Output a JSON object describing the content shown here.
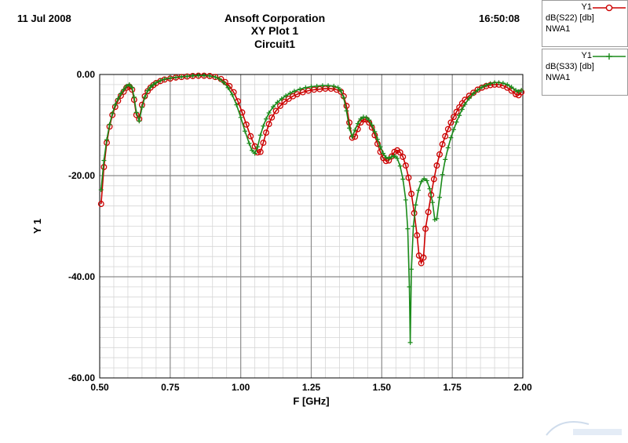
{
  "header": {
    "date": "11 Jul 2008",
    "time": "16:50:08",
    "company": "Ansoft Corporation",
    "plot_title": "XY Plot 1",
    "subtitle": "Circuit1"
  },
  "legend": [
    {
      "name": "Y1",
      "expression": "dB(S22) [db]",
      "solution": "NWA1",
      "color": "#cc0000",
      "marker": "circle"
    },
    {
      "name": "Y1",
      "expression": "dB(S33) [db]",
      "solution": "NWA1",
      "color": "#1a8a1a",
      "marker": "plus"
    }
  ],
  "chart_data": {
    "type": "line",
    "xlabel": "F [GHz]",
    "ylabel": "Y 1",
    "xlim": [
      0.5,
      2.0
    ],
    "ylim": [
      -60,
      0
    ],
    "xticks": [
      "0.50",
      "0.75",
      "1.00",
      "1.25",
      "1.50",
      "1.75",
      "2.00"
    ],
    "yticks": [
      "0.00",
      "-20.00",
      "-40.00",
      "-60.00"
    ],
    "grid": true,
    "series": [
      {
        "name": "dB(S22) [db]",
        "color": "#cc0000",
        "points": [
          [
            0.505,
            -25.6
          ],
          [
            0.515,
            -18.3
          ],
          [
            0.525,
            -13.5
          ],
          [
            0.535,
            -10.3
          ],
          [
            0.545,
            -8.0
          ],
          [
            0.555,
            -6.4
          ],
          [
            0.565,
            -5.2
          ],
          [
            0.575,
            -4.2
          ],
          [
            0.585,
            -3.4
          ],
          [
            0.595,
            -2.6
          ],
          [
            0.605,
            -2.4
          ],
          [
            0.615,
            -3.0
          ],
          [
            0.622,
            -5.0
          ],
          [
            0.63,
            -8.0
          ],
          [
            0.64,
            -8.8
          ],
          [
            0.65,
            -6.0
          ],
          [
            0.66,
            -4.3
          ],
          [
            0.67,
            -3.3
          ],
          [
            0.68,
            -2.6
          ],
          [
            0.69,
            -2.1
          ],
          [
            0.7,
            -1.7
          ],
          [
            0.715,
            -1.3
          ],
          [
            0.73,
            -1.0
          ],
          [
            0.75,
            -0.8
          ],
          [
            0.77,
            -0.6
          ],
          [
            0.79,
            -0.5
          ],
          [
            0.81,
            -0.4
          ],
          [
            0.83,
            -0.3
          ],
          [
            0.85,
            -0.25
          ],
          [
            0.87,
            -0.25
          ],
          [
            0.89,
            -0.3
          ],
          [
            0.91,
            -0.5
          ],
          [
            0.93,
            -0.9
          ],
          [
            0.945,
            -1.5
          ],
          [
            0.96,
            -2.3
          ],
          [
            0.975,
            -3.5
          ],
          [
            0.99,
            -5.3
          ],
          [
            1.005,
            -7.5
          ],
          [
            1.02,
            -9.9
          ],
          [
            1.035,
            -12.2
          ],
          [
            1.05,
            -14.2
          ],
          [
            1.06,
            -15.4
          ],
          [
            1.07,
            -15.3
          ],
          [
            1.08,
            -13.5
          ],
          [
            1.09,
            -11.5
          ],
          [
            1.1,
            -9.8
          ],
          [
            1.11,
            -8.5
          ],
          [
            1.125,
            -7.2
          ],
          [
            1.14,
            -6.2
          ],
          [
            1.155,
            -5.4
          ],
          [
            1.17,
            -4.8
          ],
          [
            1.185,
            -4.3
          ],
          [
            1.2,
            -3.9
          ],
          [
            1.22,
            -3.5
          ],
          [
            1.24,
            -3.2
          ],
          [
            1.26,
            -3.0
          ],
          [
            1.28,
            -2.9
          ],
          [
            1.3,
            -2.8
          ],
          [
            1.32,
            -2.8
          ],
          [
            1.34,
            -3.0
          ],
          [
            1.355,
            -3.4
          ],
          [
            1.365,
            -4.3
          ],
          [
            1.375,
            -6.2
          ],
          [
            1.385,
            -9.5
          ],
          [
            1.395,
            -12.5
          ],
          [
            1.405,
            -12.3
          ],
          [
            1.415,
            -10.8
          ],
          [
            1.425,
            -9.5
          ],
          [
            1.435,
            -8.9
          ],
          [
            1.445,
            -8.9
          ],
          [
            1.455,
            -9.5
          ],
          [
            1.465,
            -10.5
          ],
          [
            1.475,
            -12.0
          ],
          [
            1.485,
            -13.7
          ],
          [
            1.495,
            -15.3
          ],
          [
            1.505,
            -16.5
          ],
          [
            1.515,
            -17.1
          ],
          [
            1.525,
            -17.0
          ],
          [
            1.535,
            -16.2
          ],
          [
            1.545,
            -15.3
          ],
          [
            1.555,
            -15.0
          ],
          [
            1.565,
            -15.4
          ],
          [
            1.575,
            -16.3
          ],
          [
            1.585,
            -18.0
          ],
          [
            1.595,
            -20.4
          ],
          [
            1.605,
            -23.6
          ],
          [
            1.615,
            -27.4
          ],
          [
            1.625,
            -31.8
          ],
          [
            1.632,
            -35.8
          ],
          [
            1.64,
            -37.3
          ],
          [
            1.648,
            -36.2
          ],
          [
            1.655,
            -30.5
          ],
          [
            1.665,
            -27.2
          ],
          [
            1.675,
            -23.8
          ],
          [
            1.685,
            -20.7
          ],
          [
            1.695,
            -18.0
          ],
          [
            1.705,
            -15.8
          ],
          [
            1.715,
            -13.8
          ],
          [
            1.725,
            -12.2
          ],
          [
            1.735,
            -10.8
          ],
          [
            1.745,
            -9.5
          ],
          [
            1.755,
            -8.4
          ],
          [
            1.765,
            -7.4
          ],
          [
            1.775,
            -6.5
          ],
          [
            1.785,
            -5.7
          ],
          [
            1.795,
            -5.0
          ],
          [
            1.81,
            -4.2
          ],
          [
            1.825,
            -3.6
          ],
          [
            1.84,
            -3.0
          ],
          [
            1.855,
            -2.6
          ],
          [
            1.87,
            -2.3
          ],
          [
            1.885,
            -2.1
          ],
          [
            1.9,
            -2.0
          ],
          [
            1.915,
            -2.0
          ],
          [
            1.93,
            -2.2
          ],
          [
            1.945,
            -2.6
          ],
          [
            1.96,
            -3.2
          ],
          [
            1.975,
            -3.9
          ],
          [
            1.985,
            -4.1
          ],
          [
            1.995,
            -3.5
          ]
        ]
      },
      {
        "name": "dB(S33) [db]",
        "color": "#1a8a1a",
        "points": [
          [
            0.505,
            -22.8
          ],
          [
            0.515,
            -17.0
          ],
          [
            0.525,
            -12.9
          ],
          [
            0.535,
            -9.9
          ],
          [
            0.545,
            -7.7
          ],
          [
            0.555,
            -6.0
          ],
          [
            0.565,
            -4.8
          ],
          [
            0.575,
            -3.8
          ],
          [
            0.585,
            -3.0
          ],
          [
            0.595,
            -2.3
          ],
          [
            0.605,
            -2.0
          ],
          [
            0.615,
            -2.6
          ],
          [
            0.622,
            -4.5
          ],
          [
            0.63,
            -7.5
          ],
          [
            0.64,
            -9.2
          ],
          [
            0.65,
            -6.5
          ],
          [
            0.66,
            -4.5
          ],
          [
            0.67,
            -3.2
          ],
          [
            0.68,
            -2.5
          ],
          [
            0.69,
            -2.0
          ],
          [
            0.7,
            -1.6
          ],
          [
            0.715,
            -1.2
          ],
          [
            0.73,
            -0.9
          ],
          [
            0.75,
            -0.7
          ],
          [
            0.77,
            -0.55
          ],
          [
            0.79,
            -0.45
          ],
          [
            0.81,
            -0.35
          ],
          [
            0.83,
            -0.25
          ],
          [
            0.85,
            -0.2
          ],
          [
            0.87,
            -0.2
          ],
          [
            0.89,
            -0.3
          ],
          [
            0.91,
            -0.5
          ],
          [
            0.925,
            -0.9
          ],
          [
            0.94,
            -1.6
          ],
          [
            0.955,
            -2.6
          ],
          [
            0.97,
            -4.0
          ],
          [
            0.985,
            -6.0
          ],
          [
            1.0,
            -8.5
          ],
          [
            1.015,
            -11.2
          ],
          [
            1.03,
            -13.6
          ],
          [
            1.04,
            -15.0
          ],
          [
            1.05,
            -15.6
          ],
          [
            1.06,
            -14.3
          ],
          [
            1.07,
            -12.0
          ],
          [
            1.08,
            -10.2
          ],
          [
            1.09,
            -8.8
          ],
          [
            1.1,
            -7.6
          ],
          [
            1.115,
            -6.4
          ],
          [
            1.13,
            -5.5
          ],
          [
            1.145,
            -4.8
          ],
          [
            1.16,
            -4.2
          ],
          [
            1.175,
            -3.7
          ],
          [
            1.19,
            -3.3
          ],
          [
            1.21,
            -2.9
          ],
          [
            1.23,
            -2.6
          ],
          [
            1.25,
            -2.4
          ],
          [
            1.27,
            -2.3
          ],
          [
            1.29,
            -2.2
          ],
          [
            1.31,
            -2.2
          ],
          [
            1.33,
            -2.3
          ],
          [
            1.345,
            -2.6
          ],
          [
            1.355,
            -3.2
          ],
          [
            1.365,
            -4.6
          ],
          [
            1.375,
            -7.2
          ],
          [
            1.385,
            -10.6
          ],
          [
            1.395,
            -12.3
          ],
          [
            1.405,
            -11.0
          ],
          [
            1.415,
            -9.7
          ],
          [
            1.425,
            -8.8
          ],
          [
            1.435,
            -8.4
          ],
          [
            1.445,
            -8.5
          ],
          [
            1.455,
            -9.0
          ],
          [
            1.465,
            -10.0
          ],
          [
            1.475,
            -11.3
          ],
          [
            1.485,
            -12.8
          ],
          [
            1.495,
            -14.3
          ],
          [
            1.505,
            -15.6
          ],
          [
            1.515,
            -16.4
          ],
          [
            1.525,
            -16.6
          ],
          [
            1.535,
            -16.3
          ],
          [
            1.545,
            -16.1
          ],
          [
            1.555,
            -16.6
          ],
          [
            1.565,
            -18.1
          ],
          [
            1.575,
            -20.7
          ],
          [
            1.585,
            -24.8
          ],
          [
            1.592,
            -30.5
          ],
          [
            1.598,
            -42.0
          ],
          [
            1.601,
            -53.0
          ],
          [
            1.605,
            -38.5
          ],
          [
            1.612,
            -30.0
          ],
          [
            1.62,
            -25.8
          ],
          [
            1.63,
            -22.9
          ],
          [
            1.64,
            -21.2
          ],
          [
            1.65,
            -20.6
          ],
          [
            1.66,
            -21.0
          ],
          [
            1.67,
            -22.6
          ],
          [
            1.68,
            -25.3
          ],
          [
            1.688,
            -28.7
          ],
          [
            1.695,
            -28.5
          ],
          [
            1.705,
            -24.3
          ],
          [
            1.715,
            -19.8
          ],
          [
            1.725,
            -16.8
          ],
          [
            1.735,
            -14.5
          ],
          [
            1.745,
            -12.5
          ],
          [
            1.755,
            -10.9
          ],
          [
            1.765,
            -9.4
          ],
          [
            1.775,
            -8.1
          ],
          [
            1.785,
            -6.9
          ],
          [
            1.795,
            -5.9
          ],
          [
            1.81,
            -4.7
          ],
          [
            1.825,
            -3.8
          ],
          [
            1.84,
            -3.1
          ],
          [
            1.855,
            -2.5
          ],
          [
            1.87,
            -2.1
          ],
          [
            1.885,
            -1.8
          ],
          [
            1.9,
            -1.6
          ],
          [
            1.915,
            -1.6
          ],
          [
            1.93,
            -1.7
          ],
          [
            1.945,
            -2.0
          ],
          [
            1.96,
            -2.5
          ],
          [
            1.975,
            -3.1
          ],
          [
            1.985,
            -3.4
          ],
          [
            1.995,
            -3.1
          ]
        ]
      }
    ]
  }
}
